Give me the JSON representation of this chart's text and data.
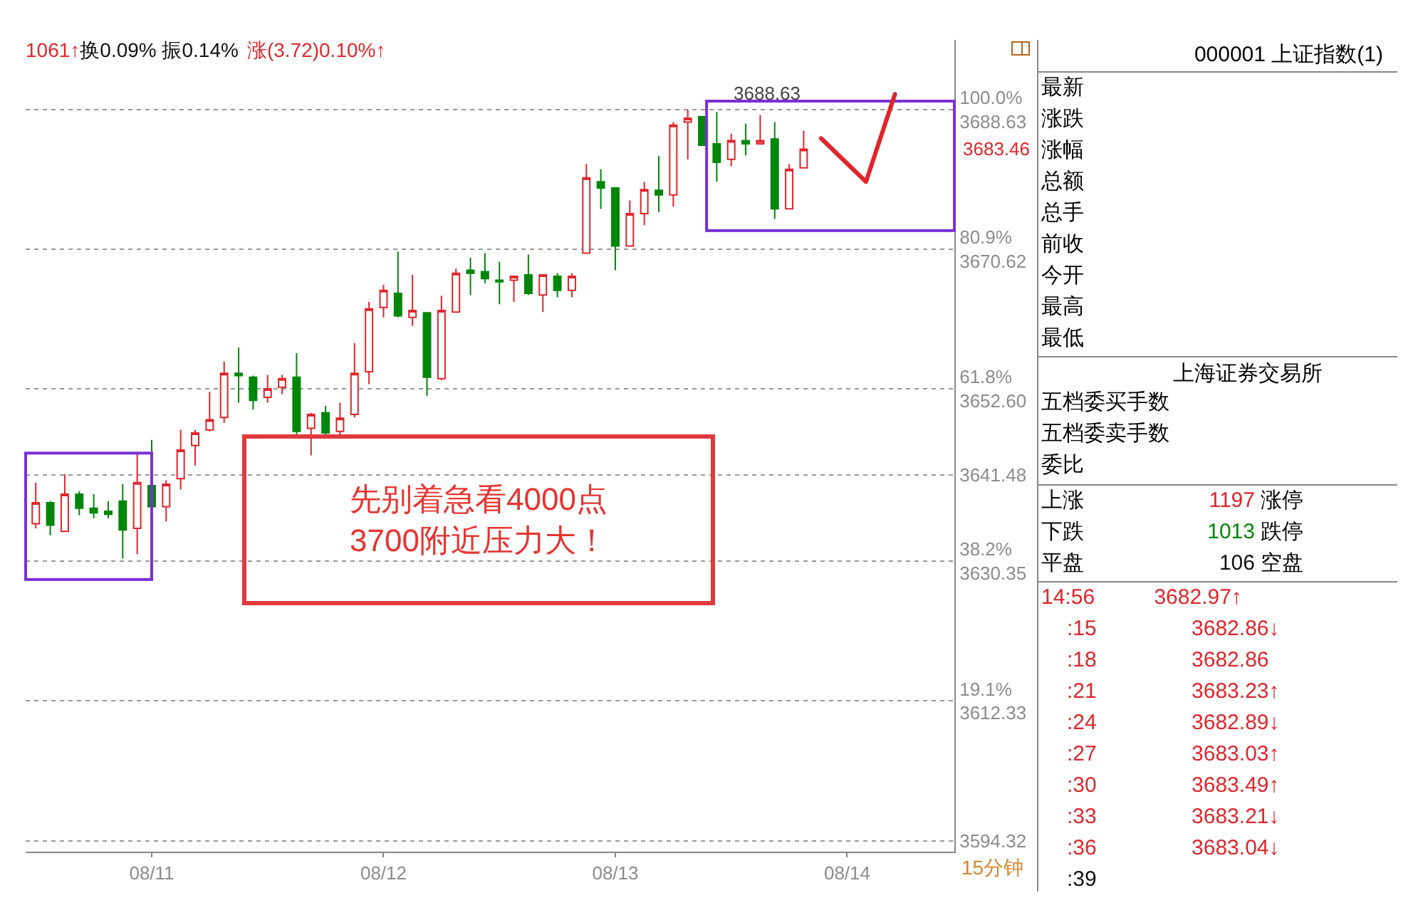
{
  "chart_data": [
    {
      "type": "candlestick",
      "categories": [
        null,
        null,
        null,
        null,
        null,
        null,
        null,
        null,
        "08/11",
        null,
        null,
        null,
        null,
        null,
        null,
        null,
        null,
        null,
        null,
        null,
        null,
        null,
        null,
        null,
        "08/12",
        null,
        null,
        null,
        null,
        null,
        null,
        null,
        null,
        null,
        null,
        null,
        null,
        null,
        null,
        null,
        "08/13",
        null,
        null,
        null,
        null,
        null,
        null,
        null,
        null,
        null,
        null,
        null,
        null,
        null,
        null,
        null,
        "08/14",
        null,
        null,
        null,
        null,
        null,
        null,
        null
      ],
      "ohlc": [
        [
          3635.2,
          3640.5,
          3634.6,
          3637.9
        ],
        [
          3637.9,
          3638.1,
          3633.7,
          3635.0
        ],
        [
          3634.2,
          3641.6,
          3634.2,
          3639.0
        ],
        [
          3639.0,
          3639.4,
          3636.3,
          3637.2
        ],
        [
          3637.2,
          3639.0,
          3635.9,
          3636.6
        ],
        [
          3636.8,
          3638.1,
          3635.9,
          3636.4
        ],
        [
          3638.1,
          3640.3,
          3630.7,
          3634.4
        ],
        [
          3634.6,
          3644.3,
          3631.3,
          3640.5
        ],
        [
          3640.1,
          3646.0,
          3637.4,
          3637.4
        ],
        [
          3637.4,
          3640.8,
          3635.5,
          3640.3
        ],
        [
          3641.0,
          3647.3,
          3639.6,
          3644.7
        ],
        [
          3645.3,
          3647.3,
          3642.7,
          3646.9
        ],
        [
          3647.3,
          3652.2,
          3647.1,
          3648.6
        ],
        [
          3648.9,
          3656.1,
          3648.2,
          3654.6
        ],
        [
          3654.6,
          3657.9,
          3650.8,
          3654.3
        ],
        [
          3654.1,
          3654.3,
          3649.9,
          3651.1
        ],
        [
          3651.5,
          3654.4,
          3650.8,
          3652.6
        ],
        [
          3652.8,
          3654.4,
          3651.9,
          3653.9
        ],
        [
          3654.1,
          3657.2,
          3646.4,
          3647.1
        ],
        [
          3647.5,
          3649.5,
          3644.0,
          3649.3
        ],
        [
          3649.5,
          3650.4,
          3646.2,
          3646.9
        ],
        [
          3647.1,
          3650.8,
          3646.2,
          3648.8
        ],
        [
          3649.3,
          3658.5,
          3648.9,
          3654.6
        ],
        [
          3654.8,
          3663.8,
          3653.2,
          3662.9
        ],
        [
          3663.1,
          3666.0,
          3661.8,
          3665.3
        ],
        [
          3664.9,
          3670.3,
          3661.8,
          3662.0
        ],
        [
          3661.8,
          3667.3,
          3660.7,
          3662.7
        ],
        [
          3662.4,
          3662.4,
          3651.7,
          3654.1
        ],
        [
          3653.9,
          3664.6,
          3653.7,
          3662.7
        ],
        [
          3662.5,
          3668.1,
          3662.4,
          3667.5
        ],
        [
          3667.9,
          3669.5,
          3664.7,
          3667.5
        ],
        [
          3667.7,
          3670.1,
          3666.2,
          3666.8
        ],
        [
          3666.6,
          3669.0,
          3663.5,
          3666.4
        ],
        [
          3666.6,
          3667.1,
          3663.8,
          3667.1
        ],
        [
          3667.3,
          3669.9,
          3664.7,
          3664.9
        ],
        [
          3664.7,
          3667.3,
          3662.5,
          3667.3
        ],
        [
          3667.1,
          3667.5,
          3664.4,
          3665.3
        ],
        [
          3665.3,
          3667.5,
          3664.4,
          3667.1
        ],
        [
          3670.1,
          3681.6,
          3670.1,
          3679.8
        ],
        [
          3679.3,
          3680.9,
          3675.8,
          3678.5
        ],
        [
          3678.5,
          3678.5,
          3667.9,
          3671.0
        ],
        [
          3671.0,
          3676.9,
          3671.0,
          3675.2
        ],
        [
          3675.2,
          3679.3,
          3673.7,
          3678.3
        ],
        [
          3678.2,
          3682.6,
          3675.4,
          3677.6
        ],
        [
          3677.6,
          3687.0,
          3676.1,
          3686.6
        ],
        [
          3687.0,
          3688.6,
          3682.2,
          3687.5
        ],
        [
          3687.7,
          3687.7,
          3684.0,
          3684.0
        ],
        [
          3684.2,
          3688.3,
          3679.3,
          3681.8
        ],
        [
          3682.2,
          3685.5,
          3681.3,
          3684.6
        ],
        [
          3684.6,
          3686.8,
          3682.7,
          3684.2
        ],
        [
          3684.2,
          3687.9,
          3684.2,
          3684.6
        ],
        [
          3684.8,
          3687.0,
          3674.5,
          3675.8
        ],
        [
          3675.8,
          3681.6,
          3675.8,
          3680.9
        ],
        [
          3681.1,
          3685.9,
          3681.1,
          3683.5
        ],
        null,
        null,
        null,
        null,
        null,
        null,
        null,
        null,
        null,
        null
      ],
      "ylim": [
        3592.9,
        3697.6
      ],
      "yticks": [
        {
          "value": 3688.63,
          "label": "100.0%\n3688.63"
        },
        {
          "value": 3670.62,
          "label": "80.9%\n3670.62"
        },
        {
          "value": 3652.6,
          "label": "61.8%\n3652.60"
        },
        {
          "value": 3641.48,
          "label": "3641.48"
        },
        {
          "value": 3630.35,
          "label": "38.2%\n3630.35"
        },
        {
          "value": 3612.33,
          "label": "19.1%\n3612.33"
        },
        {
          "value": 3594.32,
          "label": "3594.32"
        }
      ],
      "grid": "y",
      "annotations": [
        "1061↑",
        "换0.09% 振0.14%",
        "涨(3.72)0.10%↑",
        "3688.63",
        "3683.46",
        "先别着急看4000点\n3700附近压力大！",
        "15分钟"
      ]
    },
    {
      "type": "other",
      "annotations": [
        "000001 上证指数(1)",
        "最新",
        "涨跌",
        "涨幅",
        "总额",
        "总手",
        "前收",
        "今开",
        "最高",
        "最低",
        "上海证券交易所",
        "五档委买手数",
        "五档委卖手数",
        "委比",
        "上涨 1197 涨停",
        "下跌 1013 跌停",
        "平盘 106 空盘",
        "14:56 3682.97↑",
        ":15 3682.86↓",
        ":18 3682.86",
        ":21 3683.23↑",
        ":24 3682.89↓",
        ":27 3683.03↑",
        ":30 3683.49↑",
        ":33 3683.21↓",
        ":36 3683.04↓",
        ":39"
      ]
    }
  ]
}
